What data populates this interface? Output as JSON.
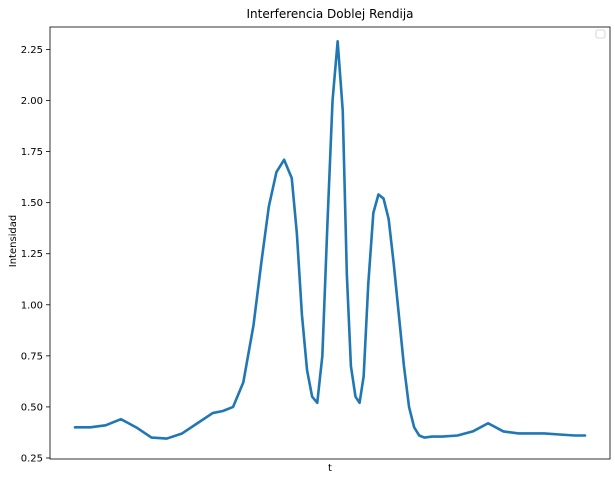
{
  "chart_data": {
    "type": "line",
    "title": "Interferencia Doblej Rendija",
    "xlabel": "t",
    "ylabel": "Intensidad",
    "ylim": [
      0.245,
      2.36
    ],
    "yticks": [
      0.25,
      0.5,
      0.75,
      1.0,
      1.25,
      1.5,
      1.75,
      2.0,
      2.25
    ],
    "ytick_labels": [
      "0.25",
      "0.50",
      "0.75",
      "1.00",
      "1.25",
      "1.50",
      "1.75",
      "2.00",
      "2.25"
    ],
    "xlim": [
      0,
      1
    ],
    "x_ticks_shown": false,
    "grid": false,
    "legend": {
      "placement": "top-right",
      "entries": []
    },
    "series": [
      {
        "color": "#1f77b4",
        "x": [
          0.0,
          0.03,
          0.06,
          0.09,
          0.12,
          0.15,
          0.18,
          0.21,
          0.24,
          0.27,
          0.29,
          0.31,
          0.33,
          0.35,
          0.365,
          0.38,
          0.395,
          0.41,
          0.425,
          0.435,
          0.445,
          0.455,
          0.465,
          0.475,
          0.485,
          0.495,
          0.505,
          0.515,
          0.525,
          0.533,
          0.541,
          0.55,
          0.558,
          0.566,
          0.575,
          0.585,
          0.595,
          0.605,
          0.615,
          0.625,
          0.635,
          0.645,
          0.655,
          0.665,
          0.675,
          0.685,
          0.7,
          0.72,
          0.75,
          0.78,
          0.81,
          0.84,
          0.87,
          0.89,
          0.92,
          0.95,
          0.98,
          1.0
        ],
        "y": [
          0.4,
          0.4,
          0.41,
          0.44,
          0.4,
          0.35,
          0.345,
          0.37,
          0.42,
          0.47,
          0.48,
          0.5,
          0.62,
          0.9,
          1.2,
          1.48,
          1.65,
          1.71,
          1.62,
          1.35,
          0.95,
          0.68,
          0.55,
          0.52,
          0.75,
          1.4,
          2.0,
          2.29,
          1.95,
          1.15,
          0.7,
          0.55,
          0.52,
          0.65,
          1.1,
          1.45,
          1.54,
          1.52,
          1.42,
          1.2,
          0.95,
          0.7,
          0.5,
          0.4,
          0.36,
          0.35,
          0.355,
          0.355,
          0.36,
          0.38,
          0.42,
          0.38,
          0.37,
          0.37,
          0.37,
          0.365,
          0.36,
          0.36
        ]
      }
    ]
  }
}
